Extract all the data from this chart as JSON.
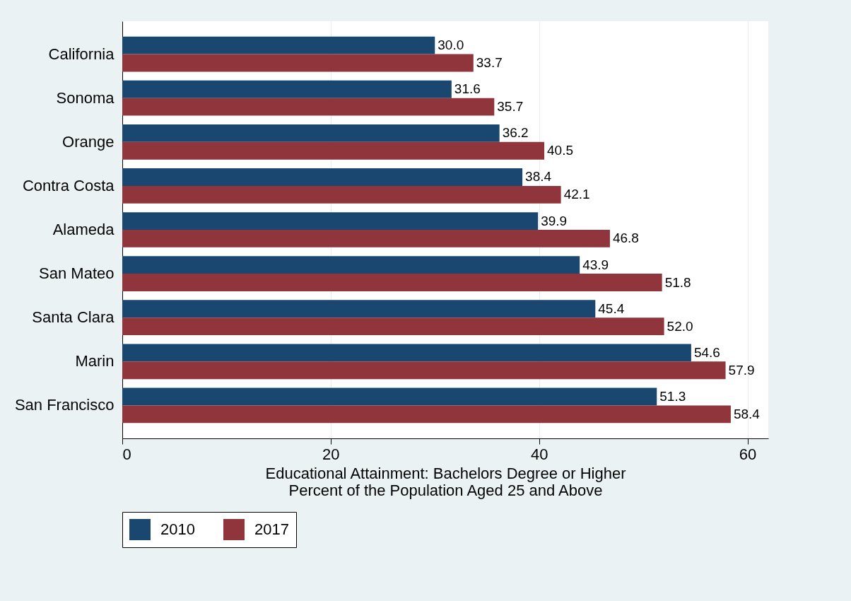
{
  "chart_data": {
    "type": "bar",
    "orientation": "horizontal",
    "categories": [
      "California",
      "Sonoma",
      "Orange",
      "Contra Costa",
      "Alameda",
      "San Mateo",
      "Santa Clara",
      "Marin",
      "San Francisco"
    ],
    "series": [
      {
        "name": "2010",
        "color": "#1a476f",
        "values": [
          30.0,
          31.6,
          36.2,
          38.4,
          39.9,
          43.9,
          45.4,
          54.6,
          51.3
        ],
        "value_labels": [
          "30.0",
          "31.6",
          "36.2",
          "38.4",
          "39.9",
          "43.9",
          "45.4",
          "54.6",
          "51.3"
        ]
      },
      {
        "name": "2017",
        "color": "#90353b",
        "values": [
          33.7,
          35.7,
          40.5,
          42.1,
          46.8,
          51.8,
          52.0,
          57.9,
          58.4
        ],
        "value_labels": [
          "33.7",
          "35.7",
          "40.5",
          "42.1",
          "46.8",
          "51.8",
          "52.0",
          "57.9",
          "58.4"
        ]
      }
    ],
    "xlabel": "Educational Attainment: Bachelors Degree or Higher\nPercent of the Population Aged 25 and Above",
    "xlim": [
      0,
      62
    ],
    "xticks": [
      0,
      20,
      40,
      60
    ],
    "grid": "x",
    "legend": "bottom"
  }
}
